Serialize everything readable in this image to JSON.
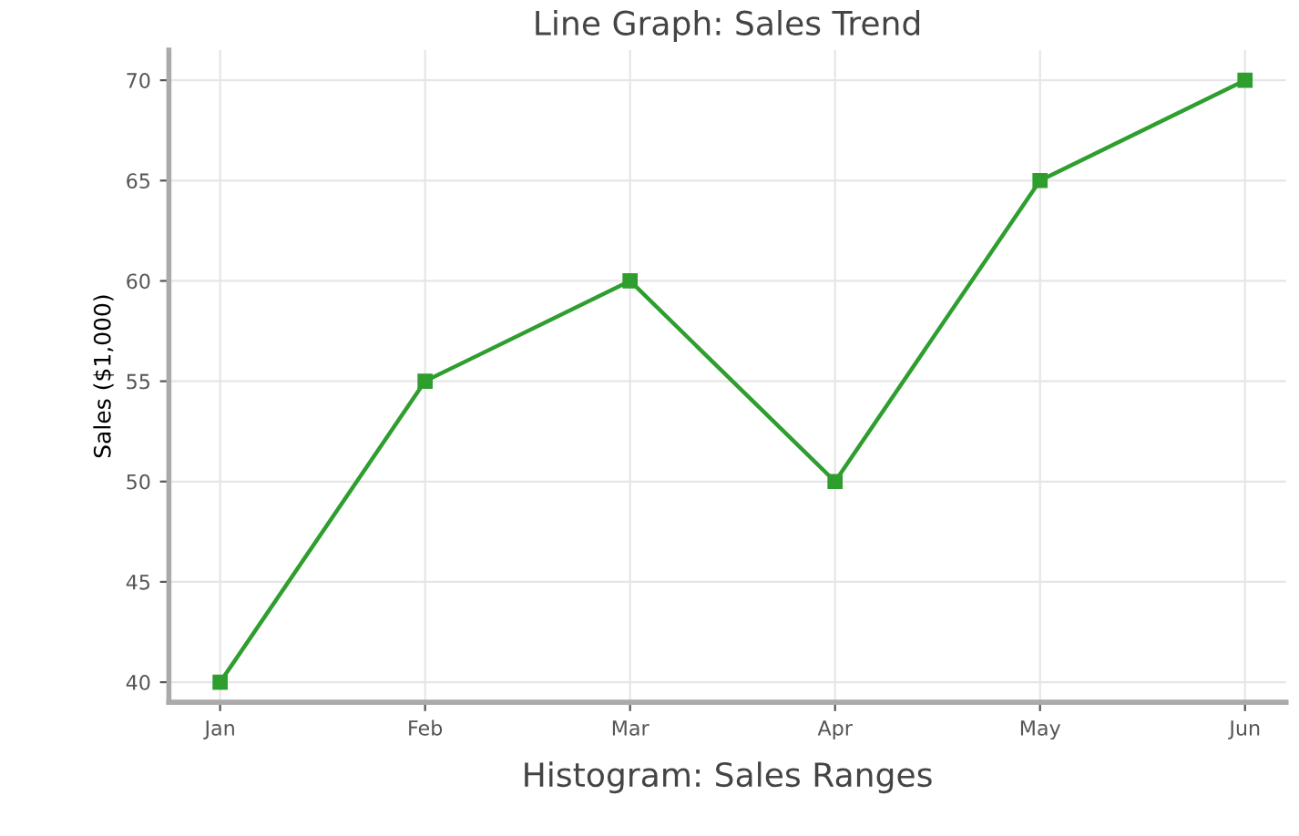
{
  "chart_data": [
    {
      "type": "line",
      "title": "Line Graph: Sales Trend",
      "ylabel": "Sales ($1,000)",
      "categories": [
        "Jan",
        "Feb",
        "Mar",
        "Apr",
        "May",
        "Jun"
      ],
      "series": [
        {
          "color": "#2e9e2e",
          "values": [
            40,
            55,
            60,
            50,
            65,
            70
          ]
        }
      ],
      "ylim": [
        39,
        71.5
      ],
      "yticks": [
        40,
        45,
        50,
        55,
        60,
        65,
        70
      ],
      "grid": true,
      "marker": "square",
      "line_style": "solid"
    },
    {
      "type": "other",
      "title": "Histogram: Sales Ranges"
    }
  ]
}
